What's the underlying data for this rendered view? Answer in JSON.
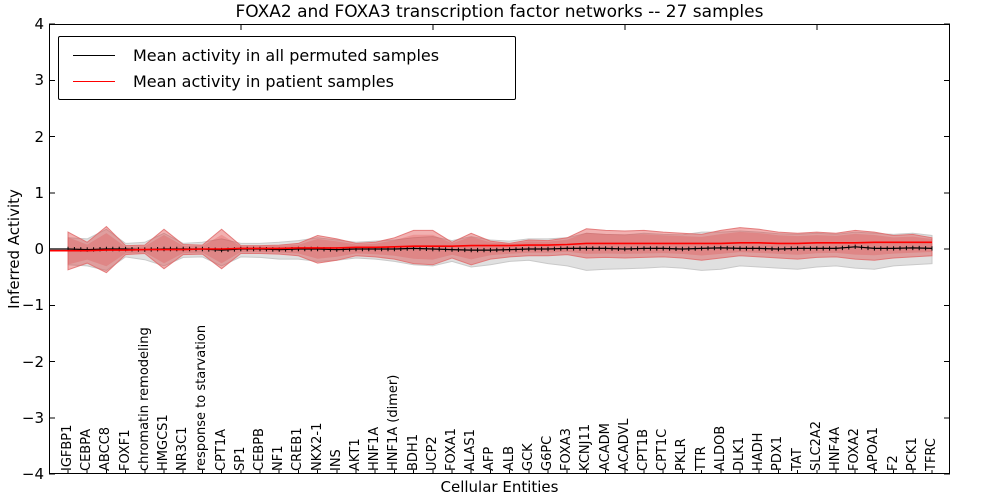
{
  "title": "FOXA2 and FOXA3 transcription factor networks -- 27 samples",
  "legend": [
    {
      "label": "Mean activity in all permuted samples",
      "color": "#000000"
    },
    {
      "label": "Mean activity in patient samples",
      "color": "#ff0000"
    }
  ],
  "chart_data": {
    "type": "line",
    "title": "FOXA2 and FOXA3 transcription factor networks -- 27 samples",
    "xlabel": "Cellular Entities",
    "ylabel": "Inferred Activity",
    "ylim": [
      -4,
      4
    ],
    "yticks": [
      4,
      3,
      2,
      1,
      0,
      -1,
      -2,
      -3,
      -4
    ],
    "grid": false,
    "legend_position": "upper left",
    "categories": [
      "IGFBP1",
      "CEBPA",
      "ABCC8",
      "FOXF1",
      "chromatin remodeling",
      "HMGCS1",
      "NR3C1",
      "response to starvation",
      "CPT1A",
      "SP1",
      "CEBPB",
      "NF1",
      "CREB1",
      "NKX2-1",
      "INS",
      "AKT1",
      "HNF1A",
      "HNF1A (dimer)",
      "BDH1",
      "UCP2",
      "FOXA1",
      "ALAS1",
      "AFP",
      "ALB",
      "GCK",
      "G6PC",
      "FOXA3",
      "KCNJ11",
      "ACADM",
      "ACADVL",
      "CPT1B",
      "CPT1C",
      "PKLR",
      "TTR",
      "ALDOB",
      "DLK1",
      "HADH",
      "PDX1",
      "TAT",
      "SLC2A2",
      "HNF4A",
      "FOXA2",
      "APOA1",
      "F2",
      "PCK1",
      "TFRC"
    ],
    "series": [
      {
        "name": "Mean activity in all permuted samples",
        "color": "#000000",
        "values": [
          0,
          -0.01,
          0,
          0,
          -0.01,
          0,
          0,
          0,
          -0.02,
          0,
          0,
          -0.01,
          0,
          0,
          -0.01,
          0,
          0,
          0,
          0.01,
          0,
          -0.01,
          -0.02,
          -0.02,
          -0.01,
          0,
          0,
          0.01,
          0.01,
          0.01,
          0,
          0.01,
          0.01,
          0,
          0.01,
          0.02,
          0.01,
          0.01,
          0,
          0.01,
          0.01,
          0.01,
          0.04,
          0.01,
          0.01,
          0.02,
          0.01
        ]
      },
      {
        "name": "Mean activity in patient samples",
        "color": "#ff0000",
        "values": [
          -0.03,
          -0.03,
          -0.02,
          -0.02,
          -0.01,
          -0.01,
          -0.01,
          0,
          0,
          0.01,
          0.01,
          0.01,
          0.02,
          0.02,
          0.02,
          0.03,
          0.03,
          0.04,
          0.05,
          0.05,
          0.05,
          0.06,
          0.06,
          0.06,
          0.07,
          0.07,
          0.08,
          0.1,
          0.1,
          0.1,
          0.1,
          0.1,
          0.1,
          0.1,
          0.1,
          0.11,
          0.11,
          0.1,
          0.1,
          0.11,
          0.11,
          0.11,
          0.12,
          0.12,
          0.12,
          0.12
        ]
      }
    ],
    "bands": [
      {
        "name": "permuted samples std band",
        "color": "#bbbbbb",
        "upper": [
          0.2,
          0.18,
          0.35,
          0.1,
          0.12,
          0.28,
          0.1,
          0.12,
          0.18,
          0.1,
          0.1,
          0.12,
          0.15,
          0.2,
          0.16,
          0.12,
          0.14,
          0.16,
          0.2,
          0.22,
          0.15,
          0.22,
          0.16,
          0.14,
          0.18,
          0.18,
          0.2,
          0.28,
          0.26,
          0.25,
          0.28,
          0.26,
          0.25,
          0.3,
          0.3,
          0.32,
          0.3,
          0.27,
          0.26,
          0.28,
          0.26,
          0.3,
          0.28,
          0.26,
          0.28,
          0.24
        ],
        "lower": [
          -0.28,
          -0.3,
          -0.38,
          -0.14,
          -0.19,
          -0.3,
          -0.15,
          -0.14,
          -0.3,
          -0.14,
          -0.15,
          -0.18,
          -0.18,
          -0.22,
          -0.2,
          -0.16,
          -0.18,
          -0.22,
          -0.28,
          -0.3,
          -0.22,
          -0.32,
          -0.28,
          -0.22,
          -0.2,
          -0.26,
          -0.3,
          -0.38,
          -0.36,
          -0.35,
          -0.34,
          -0.32,
          -0.34,
          -0.38,
          -0.36,
          -0.3,
          -0.32,
          -0.34,
          -0.36,
          -0.32,
          -0.3,
          -0.34,
          -0.36,
          -0.3,
          -0.28,
          -0.26
        ]
      },
      {
        "name": "patient samples std band",
        "color": "#dd3333",
        "upper": [
          0.3,
          0.12,
          0.4,
          0.06,
          0.07,
          0.35,
          0.08,
          0.07,
          0.35,
          0.06,
          0.06,
          0.07,
          0.1,
          0.24,
          0.18,
          0.1,
          0.12,
          0.2,
          0.33,
          0.33,
          0.12,
          0.28,
          0.14,
          0.1,
          0.16,
          0.15,
          0.2,
          0.36,
          0.33,
          0.32,
          0.33,
          0.3,
          0.28,
          0.26,
          0.33,
          0.38,
          0.35,
          0.3,
          0.28,
          0.3,
          0.28,
          0.33,
          0.3,
          0.24,
          0.26,
          0.2
        ],
        "lower": [
          -0.37,
          -0.25,
          -0.42,
          -0.1,
          -0.08,
          -0.35,
          -0.1,
          -0.09,
          -0.35,
          -0.08,
          -0.08,
          -0.09,
          -0.12,
          -0.25,
          -0.2,
          -0.12,
          -0.14,
          -0.18,
          -0.26,
          -0.28,
          -0.16,
          -0.28,
          -0.18,
          -0.14,
          -0.12,
          -0.12,
          -0.1,
          -0.16,
          -0.15,
          -0.16,
          -0.15,
          -0.14,
          -0.16,
          -0.2,
          -0.16,
          -0.12,
          -0.14,
          -0.16,
          -0.18,
          -0.15,
          -0.14,
          -0.18,
          -0.2,
          -0.16,
          -0.14,
          -0.12
        ]
      }
    ]
  }
}
